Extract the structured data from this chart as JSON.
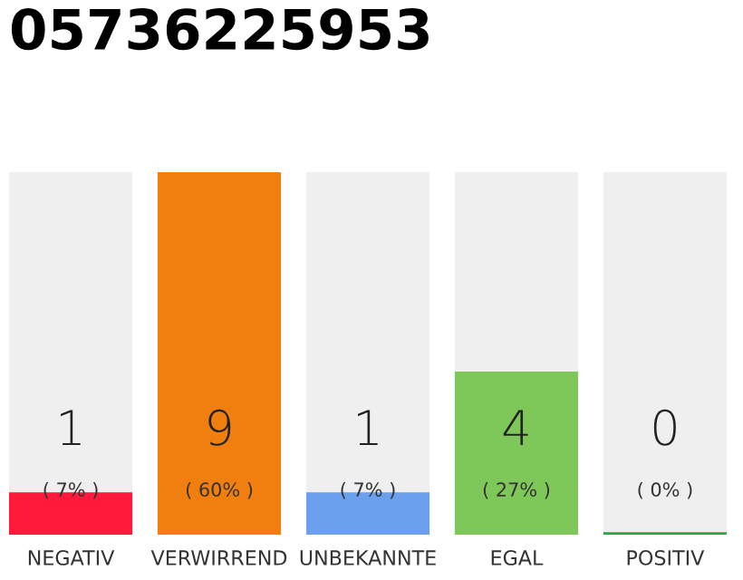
{
  "chart_data": {
    "type": "bar",
    "title": "05736225953",
    "categories": [
      "NEGATIV",
      "VERWIRREND",
      "UNBEKANNTE",
      "EGAL",
      "POSITIV"
    ],
    "values": [
      7,
      60,
      7,
      27,
      0
    ],
    "colors": [
      "#ff1a3c",
      "#f07f0f",
      "#6aa0ee",
      "#7ec85a",
      "#28a745"
    ],
    "value_labels": [
      "( 7% )",
      "( 60% )",
      "( 7% )",
      "( 27% )",
      "( 0% )"
    ],
    "annotations": [
      "1",
      "9",
      "1",
      "4",
      "0"
    ],
    "tick_labels": "x"
  }
}
